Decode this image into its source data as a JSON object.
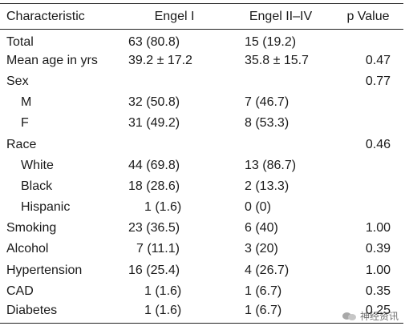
{
  "table": {
    "headers": {
      "characteristic": "Characteristic",
      "engel1": "Engel I",
      "engel2": "Engel II–IV",
      "pvalue": "p Value"
    },
    "rows": [
      {
        "label": "Total",
        "engel1": "63 (80.8)",
        "engel2": "15 (19.2)",
        "p": ""
      },
      {
        "label": "Mean age in yrs",
        "engel1": "39.2 ± 17.2",
        "engel2": "35.8 ± 15.7",
        "p": "0.47"
      },
      {
        "label": "Sex",
        "engel1": "",
        "engel2": "",
        "p": "0.77"
      },
      {
        "label": "M",
        "engel1": "32 (50.8)",
        "engel2": "7 (46.7)",
        "p": ""
      },
      {
        "label": "F",
        "engel1": "31 (49.2)",
        "engel2": "8 (53.3)",
        "p": ""
      },
      {
        "label": "Race",
        "engel1": "",
        "engel2": "",
        "p": "0.46"
      },
      {
        "label": "White",
        "engel1": "44 (69.8)",
        "engel2": "13 (86.7)",
        "p": ""
      },
      {
        "label": "Black",
        "engel1": "18 (28.6)",
        "engel2": "2 (13.3)",
        "p": ""
      },
      {
        "label": "Hispanic",
        "engel1": "1 (1.6)",
        "engel2": "0 (0)",
        "p": ""
      },
      {
        "label": "Smoking",
        "engel1": "23 (36.5)",
        "engel2": "6 (40)",
        "p": "1.00"
      },
      {
        "label": "Alcohol",
        "engel1": "7 (11.1)",
        "engel2": "3 (20)",
        "p": "0.39"
      },
      {
        "label": "Hypertension",
        "engel1": "16 (25.4)",
        "engel2": "4 (26.7)",
        "p": "1.00"
      },
      {
        "label": "CAD",
        "engel1": "1 (1.6)",
        "engel2": "1 (6.7)",
        "p": "0.35"
      },
      {
        "label": "Diabetes",
        "engel1": "1 (1.6)",
        "engel2": "1 (6.7)",
        "p": "0.25"
      }
    ]
  },
  "watermark": {
    "text": "神经资讯",
    "icon": "wechat-icon"
  }
}
